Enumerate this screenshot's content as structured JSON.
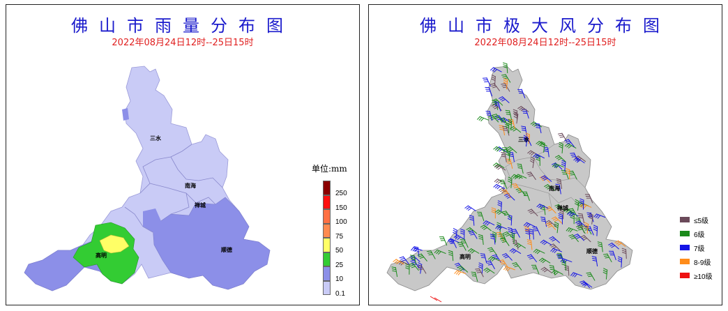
{
  "left_map": {
    "title": "佛山市雨量分布图",
    "subtitle": "2022年08月24日12时--25日15时",
    "unit_label": "单位:mm",
    "legend": [
      {
        "label": "250",
        "color": "#8b0000"
      },
      {
        "label": "150",
        "color": "#ff1010"
      },
      {
        "label": "100",
        "color": "#ff7043"
      },
      {
        "label": "75",
        "color": "#ff8a50"
      },
      {
        "label": "50",
        "color": "#ffff66"
      },
      {
        "label": "25",
        "color": "#33cc33"
      },
      {
        "label": "10",
        "color": "#8c8fe8"
      },
      {
        "label": "0.1",
        "color": "#c9cbf6"
      }
    ],
    "places": {
      "sanshui": "三水",
      "nanhai": "南海",
      "chancheng": "禅城",
      "gaoming": "高明",
      "shunde": "顺德"
    }
  },
  "right_map": {
    "title": "佛山市极大风分布图",
    "subtitle": "2022年08月24日12时--25日15时",
    "legend": [
      {
        "label": "≤5级",
        "color": "#6b4a5a"
      },
      {
        "label": "6级",
        "color": "#1a8a1a"
      },
      {
        "label": "7级",
        "color": "#1414e6"
      },
      {
        "label": "8-9级",
        "color": "#ff8c1a"
      },
      {
        "label": "≥10级",
        "color": "#ee1111"
      }
    ],
    "places": {
      "sanshui": "三水",
      "nanhai": "南海",
      "chancheng": "禅城",
      "gaoming": "高明",
      "shunde": "顺德"
    }
  }
}
